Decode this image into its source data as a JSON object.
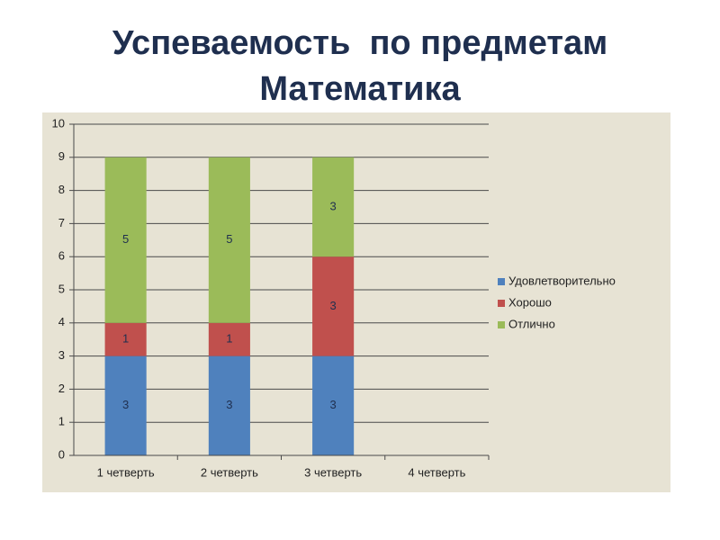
{
  "chart_data": {
    "type": "bar",
    "stacked": true,
    "title": "Успеваемость  по предметам",
    "subtitle": "Математика",
    "categories": [
      "1 четверть",
      "2 четверть",
      "3 четверть",
      "4 четверть"
    ],
    "series": [
      {
        "name": "Удовлетворительно",
        "color": "#4f81bd",
        "values": [
          3,
          3,
          3,
          null
        ]
      },
      {
        "name": "Хорошо",
        "color": "#c0504d",
        "values": [
          1,
          1,
          3,
          null
        ]
      },
      {
        "name": "Отлично",
        "color": "#9bbb59",
        "values": [
          5,
          5,
          3,
          null
        ]
      }
    ],
    "ylim": [
      0,
      10
    ],
    "yticks": [
      0,
      1,
      2,
      3,
      4,
      5,
      6,
      7,
      8,
      9,
      10
    ],
    "grid": true,
    "legend": "right",
    "data_labels": true
  }
}
